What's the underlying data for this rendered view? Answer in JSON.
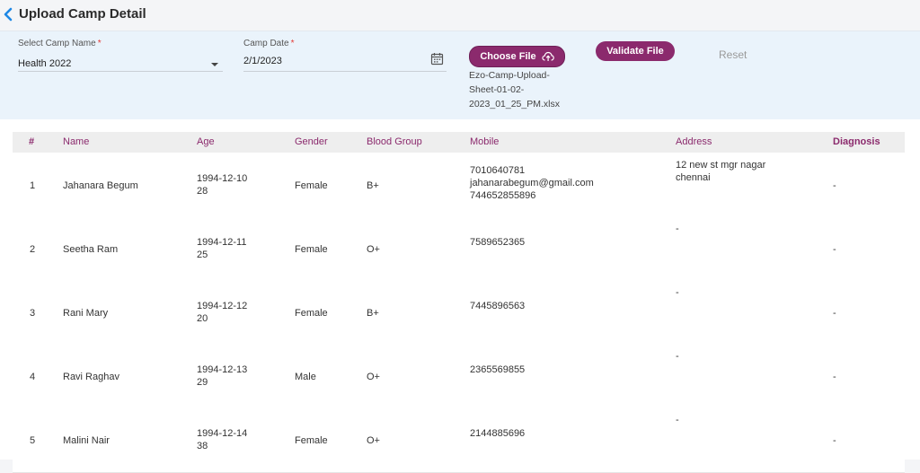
{
  "header": {
    "title": "Upload Camp Detail"
  },
  "form": {
    "camp_name_label": "Select Camp Name",
    "camp_name_value": "Health 2022",
    "camp_date_label": "Camp Date",
    "camp_date_value": "2/1/2023",
    "required_mark": "*",
    "choose_file_label": "Choose File",
    "validate_label": "Validate File",
    "reset_label": "Reset",
    "file_name_lines": [
      "Ezo-Camp-Upload-",
      "Sheet-01-02-",
      "2023_01_25_PM.xlsx"
    ]
  },
  "table": {
    "columns": [
      "#",
      "Name",
      "Age",
      "Gender",
      "Blood Group",
      "Mobile",
      "Address",
      "Diagnosis"
    ],
    "rows": [
      {
        "num": "1",
        "name": "Jahanara Begum",
        "age1": "1994-12-10",
        "age2": "28",
        "gender": "Female",
        "blood": "B+",
        "mobile1": "7010640781",
        "mobile2": "jahanarabegum@gmail.com",
        "mobile3": "744652855896",
        "address1": "12 new st mgr nagar",
        "address2": "chennai",
        "diagnosis": "-"
      },
      {
        "num": "2",
        "name": "Seetha Ram",
        "age1": "1994-12-11",
        "age2": "25",
        "gender": "Female",
        "blood": "O+",
        "mobile1": "7589652365",
        "mobile2": "",
        "mobile3": "",
        "address1": "-",
        "address2": "",
        "diagnosis": "-"
      },
      {
        "num": "3",
        "name": "Rani Mary",
        "age1": "1994-12-12",
        "age2": "20",
        "gender": "Female",
        "blood": "B+",
        "mobile1": "7445896563",
        "mobile2": "",
        "mobile3": "",
        "address1": "-",
        "address2": "",
        "diagnosis": "-"
      },
      {
        "num": "4",
        "name": "Ravi Raghav",
        "age1": "1994-12-13",
        "age2": "29",
        "gender": "Male",
        "blood": "O+",
        "mobile1": "2365569855",
        "mobile2": "",
        "mobile3": "",
        "address1": "-",
        "address2": "",
        "diagnosis": "-"
      },
      {
        "num": "5",
        "name": "Malini Nair",
        "age1": "1994-12-14",
        "age2": "38",
        "gender": "Female",
        "blood": "O+",
        "mobile1": "2144885696",
        "mobile2": "",
        "mobile3": "",
        "address1": "-",
        "address2": "",
        "diagnosis": "-"
      }
    ]
  },
  "colors": {
    "accent": "#8b2a6d",
    "panel": "#eaf3fb",
    "back_icon": "#1e88e5"
  }
}
